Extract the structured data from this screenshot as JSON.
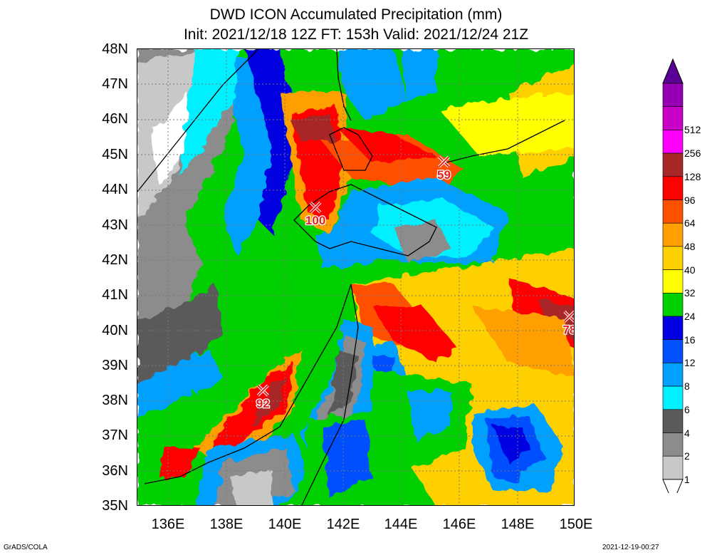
{
  "title": {
    "line1": "DWD ICON Accumulated Precipitation (mm)",
    "line2": "Init: 2021/12/18 12Z  FT: 153h  Valid: 2021/12/24 21Z"
  },
  "lat_labels": [
    "48N",
    "47N",
    "46N",
    "45N",
    "44N",
    "43N",
    "42N",
    "41N",
    "40N",
    "39N",
    "38N",
    "37N",
    "36N",
    "35N"
  ],
  "lon_labels": [
    "136E",
    "138E",
    "140E",
    "142E",
    "144E",
    "146E",
    "148E",
    "150E"
  ],
  "colorbar": {
    "levels": [
      "1",
      "2",
      "4",
      "6",
      "8",
      "12",
      "16",
      "24",
      "32",
      "40",
      "48",
      "64",
      "96",
      "128",
      "256",
      "512"
    ],
    "colors": [
      "#ffffff",
      "#c8c8c8",
      "#8c8c8c",
      "#5a5a5a",
      "#00f0ff",
      "#00a0ff",
      "#0050ff",
      "#0000e0",
      "#00d000",
      "#ffff00",
      "#ffd000",
      "#ffa000",
      "#ff5000",
      "#ff0000",
      "#a82828",
      "#ff00ff",
      "#c800c8",
      "#9600b4",
      "#5a0096"
    ]
  },
  "maxima": [
    {
      "label": "100",
      "lon": 141.1,
      "lat": 43.5
    },
    {
      "label": "59",
      "lon": 145.5,
      "lat": 44.8
    },
    {
      "label": "78",
      "lon": 149.8,
      "lat": 40.4
    },
    {
      "label": "92",
      "lon": 139.3,
      "lat": 38.3
    }
  ],
  "footer": {
    "left": "GrADS/COLA",
    "right": "2021-12-19-00:27"
  }
}
